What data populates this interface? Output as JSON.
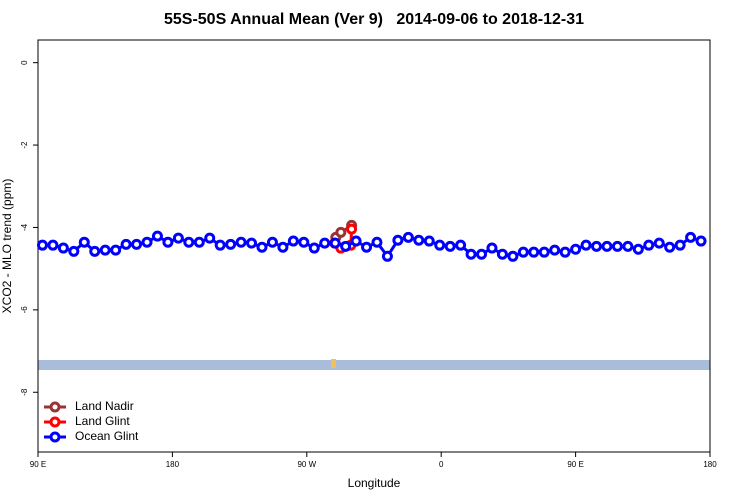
{
  "chart_data": {
    "type": "line",
    "title": "55S-50S Annual Mean (Ver 9)   2014-09-06 to 2018-12-31",
    "x_label": "Longitude",
    "y_label": "XCO2 - MLO trend (ppm)",
    "xlim": [
      90,
      540
    ],
    "ylim": [
      -9.45,
      0.55
    ],
    "xticks": [
      {
        "value": 90,
        "label": "90 E"
      },
      180,
      {
        "value": 270,
        "label": "90 W"
      },
      {
        "value": 360,
        "label": "0"
      },
      {
        "value": 450,
        "label": "90 E"
      },
      {
        "value": 540,
        "label": "180"
      }
    ],
    "yticks": [
      0,
      -2,
      -4,
      -6,
      -8
    ],
    "legend": "bottom-left",
    "series": [
      {
        "name": "Land Nadir",
        "color": "#993333",
        "x": [
          289.4,
          292.8,
          300
        ],
        "values": [
          -4.24,
          -4.12,
          -3.95
        ]
      },
      {
        "name": "Land Glint",
        "color": "#ff0000",
        "x": [
          288.7,
          292.8,
          299.5,
          300
        ],
        "values": [
          -4.38,
          -4.5,
          -4.43,
          -4.04
        ]
      },
      {
        "name": "Ocean Glint",
        "color": "#0000ff",
        "x": [
          93,
          100,
          107,
          114,
          121,
          128,
          135,
          142,
          149,
          156,
          163,
          170,
          177,
          184,
          191,
          198,
          205,
          212,
          219,
          226,
          233,
          240,
          247,
          254,
          261,
          268,
          275,
          282,
          289,
          296,
          303,
          310,
          317,
          324,
          331,
          338,
          345,
          352,
          359,
          366,
          373,
          380,
          387,
          394,
          401,
          408,
          415,
          422,
          429,
          436,
          443,
          450,
          457,
          464,
          471,
          478,
          485,
          492,
          499,
          506,
          513,
          520,
          527,
          534
        ],
        "values": [
          -4.43,
          -4.43,
          -4.5,
          -4.58,
          -4.36,
          -4.58,
          -4.55,
          -4.55,
          -4.41,
          -4.41,
          -4.36,
          -4.21,
          -4.36,
          -4.26,
          -4.36,
          -4.36,
          -4.26,
          -4.43,
          -4.41,
          -4.36,
          -4.38,
          -4.48,
          -4.36,
          -4.48,
          -4.33,
          -4.36,
          -4.5,
          -4.38,
          -4.38,
          -4.46,
          -4.33,
          -4.48,
          -4.36,
          -4.7,
          -4.31,
          -4.24,
          -4.31,
          -4.33,
          -4.43,
          -4.46,
          -4.43,
          -4.65,
          -4.65,
          -4.5,
          -4.65,
          -4.7,
          -4.6,
          -4.6,
          -4.6,
          -4.55,
          -4.6,
          -4.53,
          -4.43,
          -4.46,
          -4.46,
          -4.46,
          -4.46,
          -4.53,
          -4.43,
          -4.38,
          -4.48,
          -4.43,
          -4.24,
          -4.33
        ]
      }
    ]
  }
}
